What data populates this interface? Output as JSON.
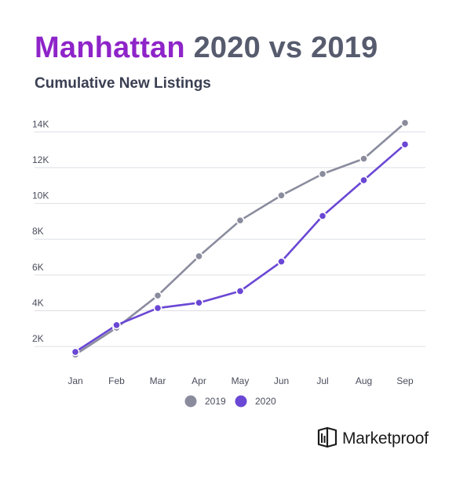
{
  "header": {
    "title_highlight": "Manhattan",
    "title_rest": "2020 vs 2019",
    "subtitle": "Cumulative New Listings"
  },
  "brand": {
    "name": "Marketproof",
    "icon": "marketproof-logo-icon"
  },
  "colors": {
    "title_accent": "#8e24c9",
    "series_2019": "#8a8c9e",
    "series_2020": "#6a47d4"
  },
  "chart_data": {
    "type": "line",
    "title": "Cumulative New Listings",
    "categories": [
      "Jan",
      "Feb",
      "Mar",
      "Apr",
      "May",
      "Jun",
      "Jul",
      "Aug",
      "Sep"
    ],
    "y_ticks": [
      {
        "value": 2000,
        "label": "2K"
      },
      {
        "value": 4000,
        "label": "4K"
      },
      {
        "value": 6000,
        "label": "6K"
      },
      {
        "value": 8000,
        "label": "8K"
      },
      {
        "value": 10000,
        "label": "10K"
      },
      {
        "value": 12000,
        "label": "12K"
      },
      {
        "value": 14000,
        "label": "14K"
      }
    ],
    "ylim": [
      1000,
      14800
    ],
    "grid": true,
    "legend_position": "bottom",
    "series": [
      {
        "name": "2019",
        "color": "#8a8c9e",
        "values": [
          1550,
          3050,
          4850,
          7050,
          9050,
          10450,
          11650,
          12500,
          14500
        ]
      },
      {
        "name": "2020",
        "color": "#6a47d4",
        "values": [
          1700,
          3200,
          4150,
          4450,
          5100,
          6750,
          9300,
          11300,
          13300
        ]
      }
    ]
  }
}
